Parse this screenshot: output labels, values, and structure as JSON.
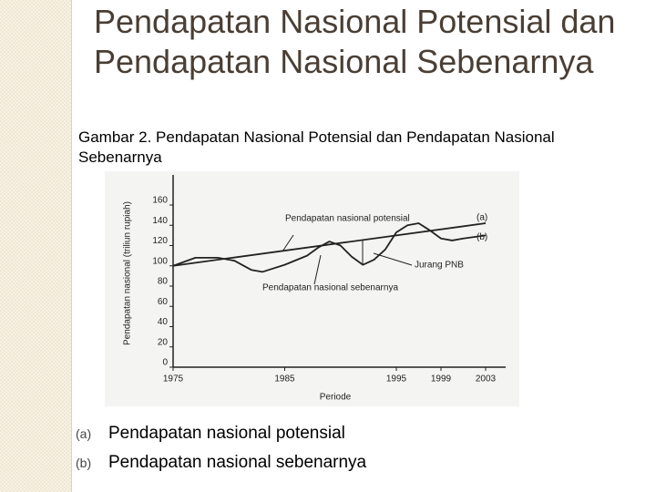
{
  "slide": {
    "title": "Pendapatan Nasional Potensial dan Pendapatan Nasional Sebenarnya",
    "caption": "Gambar 2. Pendapatan Nasional Potensial dan Pendapatan Nasional Sebenarnya",
    "notes": [
      {
        "marker": "(a)",
        "text": "Pendapatan nasional potensial"
      },
      {
        "marker": "(b)",
        "text": "Pendapatan nasional sebenarnya"
      }
    ]
  },
  "chart_data": {
    "type": "line",
    "x_label": "Periode",
    "y_label": "Pendapatan nasional (triliun rupiah)",
    "xlim": [
      1975,
      2003
    ],
    "xticks": [
      1975,
      1985,
      1995,
      1999,
      2003
    ],
    "ylim": [
      0,
      160
    ],
    "yticks": [
      0,
      20,
      40,
      60,
      80,
      100,
      120,
      140,
      160
    ],
    "color": "#222222",
    "series": [
      {
        "name": "(a)",
        "x": [
          1975,
          2003
        ],
        "values": [
          100,
          142
        ]
      },
      {
        "name": "(b)",
        "x": [
          1975,
          1977,
          1979,
          1980.5,
          1982,
          1983,
          1985,
          1987,
          1988,
          1989,
          1990,
          1991,
          1992,
          1993,
          1994,
          1995,
          1996,
          1997,
          1998,
          1999,
          2000,
          2001,
          2003
        ],
        "values": [
          100,
          108,
          108,
          105,
          96,
          94,
          101,
          110,
          118,
          124,
          120,
          109,
          101,
          106,
          116,
          133,
          140,
          142,
          135,
          127,
          125,
          127,
          130
        ]
      }
    ],
    "annotations": [
      "Pendapatan nasional potensial",
      "Pendapatan nasional sebenarnya",
      "Jurang PNB"
    ]
  }
}
